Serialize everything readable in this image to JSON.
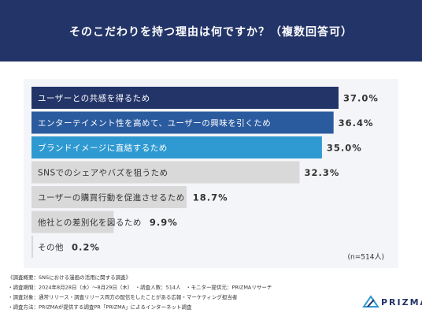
{
  "chart_data": {
    "type": "bar",
    "orientation": "horizontal",
    "title": "そのこだわりを持つ理由は何ですか？（複数回答可）",
    "categories": [
      "ユーザーとの共感を得るため",
      "エンターテイメント性を高めて、ユーザーの興味を引くため",
      "ブランドイメージに直結するため",
      "SNSでのシェアやバズを狙うため",
      "ユーザーの購買行動を促進させるため",
      "他社との差別化を図るため",
      "その他"
    ],
    "values": [
      37.0,
      36.4,
      35.0,
      32.3,
      18.7,
      9.9,
      0.2
    ],
    "value_labels": [
      "37.0%",
      "36.4%",
      "35.0%",
      "32.3%",
      "18.7%",
      "9.9%",
      "0.2%"
    ],
    "colors": [
      "#233468",
      "#2b5b9f",
      "#2f9ad2",
      "#d9d9d9",
      "#d9d9d9",
      "#d9d9d9",
      "#d9d9d9"
    ],
    "note": "(n=514人)"
  },
  "footer": {
    "notes": [
      "《調査概要：SNSにおける漫画の活用に関する調査》",
      "・調査期間：2024年8月28日（水）〜8月29日（木）　・調査人数：514人　・モニター提供元：PRIZMAリサーチ",
      "・調査対象：通常リリース・調査リリース両方の配信をしたことがある広報・マーケティング担当者",
      "・調査方法：PRIZMAが提供する調査PR「PRIZMA」によるインターネット調査"
    ],
    "brand": "PRIZMA"
  }
}
